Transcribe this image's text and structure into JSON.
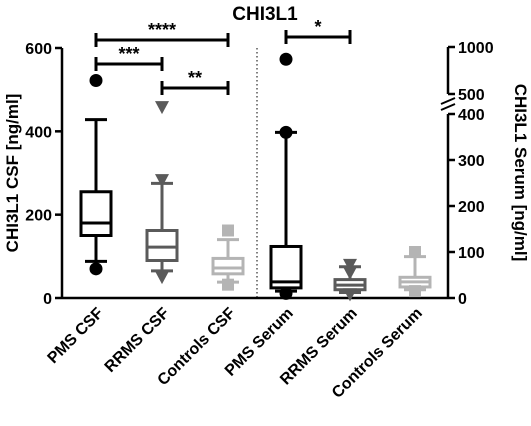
{
  "chart_data": {
    "type": "box",
    "title": "CHI3L1",
    "left_axis": {
      "label": "CHI3L1 CSF [ng/ml]",
      "ylim": [
        0,
        600
      ],
      "ticks": [
        0,
        200,
        400,
        600
      ],
      "tick_labels": [
        "0",
        "200",
        "400",
        "600"
      ]
    },
    "right_axis": {
      "label": "CHI3L1 Serum [ng/ml]",
      "lower_segment": {
        "ylim": [
          0,
          400
        ],
        "ticks": [
          0,
          100,
          200,
          300,
          400
        ],
        "tick_labels": [
          "0",
          "100",
          "200",
          "300",
          "400"
        ]
      },
      "upper_segment": {
        "ylim": [
          500,
          1000
        ],
        "ticks": [
          500,
          1000
        ],
        "tick_labels": [
          "500",
          "1000"
        ]
      },
      "broken": true
    },
    "categories": [
      "PMS CSF",
      "RRMS CSF",
      "Controls CSF",
      "PMS Serum",
      "RRMS Serum",
      "Controls Serum"
    ],
    "groups": [
      {
        "name": "PMS CSF",
        "axis": "left",
        "color": "#000000",
        "marker": "circle",
        "whisker_low": 88,
        "q1": 150,
        "median": 180,
        "q3": 255,
        "whisker_high": 428,
        "outliers": [
          70,
          522
        ]
      },
      {
        "name": "RRMS CSF",
        "axis": "left",
        "color": "#5a5a5a",
        "marker": "triangle-down",
        "whisker_low": 65,
        "q1": 90,
        "median": 122,
        "q3": 162,
        "whisker_high": 275,
        "outliers": [
          50,
          52,
          283,
          458
        ]
      },
      {
        "name": "Controls CSF",
        "axis": "left",
        "color": "#b4b4b4",
        "marker": "square",
        "whisker_low": 38,
        "q1": 58,
        "median": 72,
        "q3": 95,
        "whisker_high": 140,
        "outliers": [
          32,
          162
        ]
      },
      {
        "name": "PMS Serum",
        "axis": "right",
        "color": "#000000",
        "marker": "circle",
        "whisker_low": 15,
        "q1": 22,
        "median": 35,
        "q3": 112,
        "whisker_high": 360,
        "outliers": [
          10,
          360,
          870
        ]
      },
      {
        "name": "RRMS Serum",
        "axis": "right",
        "color": "#5a5a5a",
        "marker": "triangle-down",
        "whisker_low": 12,
        "q1": 18,
        "median": 28,
        "q3": 40,
        "whisker_high": 68,
        "outliers": [
          8,
          55,
          72
        ]
      },
      {
        "name": "Controls Serum",
        "axis": "right",
        "color": "#b4b4b4",
        "marker": "square",
        "whisker_low": 18,
        "q1": 24,
        "median": 35,
        "q3": 45,
        "whisker_high": 90,
        "outliers": [
          15,
          100
        ]
      }
    ],
    "significance": [
      {
        "from": 0,
        "to": 2,
        "label": "****"
      },
      {
        "from": 0,
        "to": 1,
        "label": "***"
      },
      {
        "from": 1,
        "to": 2,
        "label": "**"
      },
      {
        "from": 3,
        "to": 4,
        "label": "*"
      }
    ],
    "divider": "dotted"
  }
}
